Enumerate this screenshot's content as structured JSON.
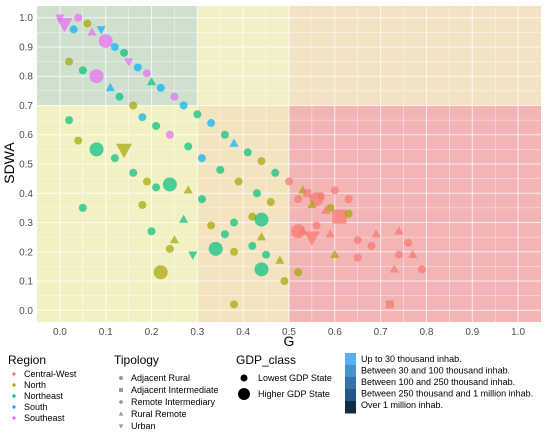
{
  "chart_data": {
    "type": "scatter",
    "xlabel": "G",
    "ylabel": "SDWA",
    "xlim": [
      -0.05,
      1.05
    ],
    "ylim": [
      -0.04,
      1.04
    ],
    "x_ticks": [
      "0.0",
      "0.1",
      "0.2",
      "0.3",
      "0.4",
      "0.5",
      "0.6",
      "0.7",
      "0.8",
      "0.9",
      "1.0"
    ],
    "y_ticks": [
      "0.0",
      "0.1",
      "0.2",
      "0.3",
      "0.4",
      "0.5",
      "0.6",
      "0.7",
      "0.8",
      "0.9",
      "1.0"
    ],
    "grid": true,
    "background_zones": [
      {
        "x": [
          -0.05,
          0.3
        ],
        "y": [
          0.7,
          1.04
        ],
        "color": "#cfe0cf"
      },
      {
        "x": [
          0.3,
          0.5
        ],
        "y": [
          0.7,
          1.04
        ],
        "color": "#f3f0c8"
      },
      {
        "x": [
          0.5,
          1.05
        ],
        "y": [
          0.7,
          1.04
        ],
        "color": "#f1e3c4"
      },
      {
        "x": [
          -0.05,
          0.3
        ],
        "y": [
          -0.04,
          0.7
        ],
        "color": "#f1f1c4"
      },
      {
        "x": [
          0.3,
          0.5
        ],
        "y": [
          -0.04,
          0.7
        ],
        "color": "#f3e4c0"
      },
      {
        "x": [
          0.5,
          1.05
        ],
        "y": [
          -0.04,
          0.7
        ],
        "color": "#f2b4b4"
      }
    ],
    "region_colors": {
      "Central-West": "#f8766d",
      "North": "#a3a500",
      "Northeast": "#00bf7d",
      "South": "#00b0f6",
      "Southeast": "#e76bf3"
    },
    "points": [
      {
        "x": 0.0,
        "y": 1.0,
        "region": "Southeast",
        "tipology": "Urban",
        "gdp": "Lowest GDP State"
      },
      {
        "x": 0.01,
        "y": 0.98,
        "region": "Southeast",
        "tipology": "Urban",
        "gdp": "Higher GDP State"
      },
      {
        "x": 0.03,
        "y": 0.96,
        "region": "South",
        "tipology": "Adjacent Rural",
        "gdp": "Lowest GDP State"
      },
      {
        "x": 0.04,
        "y": 1.0,
        "region": "Southeast",
        "tipology": "Adjacent Rural",
        "gdp": "Lowest GDP State"
      },
      {
        "x": 0.06,
        "y": 0.98,
        "region": "North",
        "tipology": "Adjacent Rural",
        "gdp": "Lowest GDP State"
      },
      {
        "x": 0.07,
        "y": 0.95,
        "region": "Southeast",
        "tipology": "Rural Remote",
        "gdp": "Lowest GDP State"
      },
      {
        "x": 0.09,
        "y": 0.96,
        "region": "South",
        "tipology": "Urban",
        "gdp": "Lowest GDP State"
      },
      {
        "x": 0.1,
        "y": 0.92,
        "region": "Southeast",
        "tipology": "Adjacent Rural",
        "gdp": "Higher GDP State"
      },
      {
        "x": 0.12,
        "y": 0.9,
        "region": "South",
        "tipology": "Adjacent Rural",
        "gdp": "Lowest GDP State"
      },
      {
        "x": 0.14,
        "y": 0.88,
        "region": "Northeast",
        "tipology": "Adjacent Rural",
        "gdp": "Lowest GDP State"
      },
      {
        "x": 0.15,
        "y": 0.85,
        "region": "Southeast",
        "tipology": "Urban",
        "gdp": "Lowest GDP State"
      },
      {
        "x": 0.17,
        "y": 0.83,
        "region": "South",
        "tipology": "Adjacent Rural",
        "gdp": "Lowest GDP State"
      },
      {
        "x": 0.19,
        "y": 0.81,
        "region": "Southeast",
        "tipology": "Adjacent Rural",
        "gdp": "Lowest GDP State"
      },
      {
        "x": 0.2,
        "y": 0.78,
        "region": "Northeast",
        "tipology": "Rural Remote",
        "gdp": "Lowest GDP State"
      },
      {
        "x": 0.22,
        "y": 0.76,
        "region": "South",
        "tipology": "Adjacent Rural",
        "gdp": "Lowest GDP State"
      },
      {
        "x": 0.25,
        "y": 0.73,
        "region": "Southeast",
        "tipology": "Adjacent Rural",
        "gdp": "Lowest GDP State"
      },
      {
        "x": 0.27,
        "y": 0.7,
        "region": "South",
        "tipology": "Adjacent Rural",
        "gdp": "Lowest GDP State"
      },
      {
        "x": 0.3,
        "y": 0.67,
        "region": "Northeast",
        "tipology": "Adjacent Rural",
        "gdp": "Lowest GDP State"
      },
      {
        "x": 0.33,
        "y": 0.64,
        "region": "South",
        "tipology": "Adjacent Rural",
        "gdp": "Lowest GDP State"
      },
      {
        "x": 0.36,
        "y": 0.6,
        "region": "Northeast",
        "tipology": "Adjacent Rural",
        "gdp": "Lowest GDP State"
      },
      {
        "x": 0.38,
        "y": 0.57,
        "region": "South",
        "tipology": "Rural Remote",
        "gdp": "Lowest GDP State"
      },
      {
        "x": 0.41,
        "y": 0.54,
        "region": "Northeast",
        "tipology": "Adjacent Rural",
        "gdp": "Lowest GDP State"
      },
      {
        "x": 0.44,
        "y": 0.51,
        "region": "North",
        "tipology": "Adjacent Rural",
        "gdp": "Lowest GDP State"
      },
      {
        "x": 0.47,
        "y": 0.47,
        "region": "Northeast",
        "tipology": "Adjacent Rural",
        "gdp": "Lowest GDP State"
      },
      {
        "x": 0.5,
        "y": 0.44,
        "region": "Central-West",
        "tipology": "Adjacent Rural",
        "gdp": "Lowest GDP State"
      },
      {
        "x": 0.53,
        "y": 0.41,
        "region": "North",
        "tipology": "Rural Remote",
        "gdp": "Lowest GDP State"
      },
      {
        "x": 0.56,
        "y": 0.38,
        "region": "Central-West",
        "tipology": "Adjacent Rural",
        "gdp": "Higher GDP State"
      },
      {
        "x": 0.59,
        "y": 0.35,
        "region": "North",
        "tipology": "Adjacent Rural",
        "gdp": "Lowest GDP State"
      },
      {
        "x": 0.61,
        "y": 0.32,
        "region": "Central-West",
        "tipology": "Adjacent Intermediate",
        "gdp": "Higher GDP State"
      },
      {
        "x": 0.02,
        "y": 0.85,
        "region": "North",
        "tipology": "Adjacent Rural",
        "gdp": "Lowest GDP State"
      },
      {
        "x": 0.05,
        "y": 0.82,
        "region": "Northeast",
        "tipology": "Adjacent Rural",
        "gdp": "Lowest GDP State"
      },
      {
        "x": 0.08,
        "y": 0.8,
        "region": "Southeast",
        "tipology": "Adjacent Rural",
        "gdp": "Higher GDP State"
      },
      {
        "x": 0.11,
        "y": 0.76,
        "region": "South",
        "tipology": "Rural Remote",
        "gdp": "Lowest GDP State"
      },
      {
        "x": 0.13,
        "y": 0.73,
        "region": "Northeast",
        "tipology": "Adjacent Rural",
        "gdp": "Lowest GDP State"
      },
      {
        "x": 0.16,
        "y": 0.7,
        "region": "North",
        "tipology": "Adjacent Rural",
        "gdp": "Lowest GDP State"
      },
      {
        "x": 0.18,
        "y": 0.66,
        "region": "South",
        "tipology": "Adjacent Rural",
        "gdp": "Lowest GDP State"
      },
      {
        "x": 0.21,
        "y": 0.63,
        "region": "Northeast",
        "tipology": "Adjacent Rural",
        "gdp": "Lowest GDP State"
      },
      {
        "x": 0.24,
        "y": 0.6,
        "region": "Southeast",
        "tipology": "Adjacent Rural",
        "gdp": "Lowest GDP State"
      },
      {
        "x": 0.28,
        "y": 0.56,
        "region": "Northeast",
        "tipology": "Adjacent Rural",
        "gdp": "Lowest GDP State"
      },
      {
        "x": 0.31,
        "y": 0.52,
        "region": "South",
        "tipology": "Adjacent Rural",
        "gdp": "Lowest GDP State"
      },
      {
        "x": 0.35,
        "y": 0.48,
        "region": "Northeast",
        "tipology": "Adjacent Rural",
        "gdp": "Lowest GDP State"
      },
      {
        "x": 0.39,
        "y": 0.44,
        "region": "North",
        "tipology": "Adjacent Rural",
        "gdp": "Lowest GDP State"
      },
      {
        "x": 0.43,
        "y": 0.4,
        "region": "Northeast",
        "tipology": "Adjacent Rural",
        "gdp": "Lowest GDP State"
      },
      {
        "x": 0.46,
        "y": 0.37,
        "region": "North",
        "tipology": "Adjacent Rural",
        "gdp": "Lowest GDP State"
      },
      {
        "x": 0.02,
        "y": 0.65,
        "region": "Northeast",
        "tipology": "Adjacent Rural",
        "gdp": "Lowest GDP State"
      },
      {
        "x": 0.04,
        "y": 0.58,
        "region": "North",
        "tipology": "Adjacent Rural",
        "gdp": "Lowest GDP State"
      },
      {
        "x": 0.08,
        "y": 0.55,
        "region": "Northeast",
        "tipology": "Adjacent Rural",
        "gdp": "Higher GDP State"
      },
      {
        "x": 0.12,
        "y": 0.52,
        "region": "Northeast",
        "tipology": "Adjacent Rural",
        "gdp": "Lowest GDP State"
      },
      {
        "x": 0.14,
        "y": 0.55,
        "region": "North",
        "tipology": "Urban",
        "gdp": "Higher GDP State"
      },
      {
        "x": 0.16,
        "y": 0.47,
        "region": "Northeast",
        "tipology": "Adjacent Rural",
        "gdp": "Lowest GDP State"
      },
      {
        "x": 0.19,
        "y": 0.44,
        "region": "North",
        "tipology": "Adjacent Rural",
        "gdp": "Lowest GDP State"
      },
      {
        "x": 0.21,
        "y": 0.42,
        "region": "Northeast",
        "tipology": "Adjacent Rural",
        "gdp": "Lowest GDP State"
      },
      {
        "x": 0.24,
        "y": 0.43,
        "region": "Northeast",
        "tipology": "Adjacent Rural",
        "gdp": "Higher GDP State"
      },
      {
        "x": 0.28,
        "y": 0.41,
        "region": "North",
        "tipology": "Rural Remote",
        "gdp": "Lowest GDP State"
      },
      {
        "x": 0.31,
        "y": 0.38,
        "region": "Northeast",
        "tipology": "Adjacent Rural",
        "gdp": "Lowest GDP State"
      },
      {
        "x": 0.05,
        "y": 0.35,
        "region": "Northeast",
        "tipology": "Adjacent Rural",
        "gdp": "Lowest GDP State"
      },
      {
        "x": 0.18,
        "y": 0.36,
        "region": "North",
        "tipology": "Adjacent Rural",
        "gdp": "Lowest GDP State"
      },
      {
        "x": 0.27,
        "y": 0.31,
        "region": "Northeast",
        "tipology": "Rural Remote",
        "gdp": "Lowest GDP State"
      },
      {
        "x": 0.33,
        "y": 0.29,
        "region": "North",
        "tipology": "Adjacent Rural",
        "gdp": "Lowest GDP State"
      },
      {
        "x": 0.36,
        "y": 0.26,
        "region": "Northeast",
        "tipology": "Adjacent Rural",
        "gdp": "Lowest GDP State"
      },
      {
        "x": 0.38,
        "y": 0.3,
        "region": "Northeast",
        "tipology": "Adjacent Rural",
        "gdp": "Lowest GDP State"
      },
      {
        "x": 0.42,
        "y": 0.32,
        "region": "North",
        "tipology": "Adjacent Rural",
        "gdp": "Lowest GDP State"
      },
      {
        "x": 0.44,
        "y": 0.31,
        "region": "Northeast",
        "tipology": "Adjacent Rural",
        "gdp": "Higher GDP State"
      },
      {
        "x": 0.2,
        "y": 0.27,
        "region": "Northeast",
        "tipology": "Adjacent Rural",
        "gdp": "Lowest GDP State"
      },
      {
        "x": 0.25,
        "y": 0.24,
        "region": "North",
        "tipology": "Rural Remote",
        "gdp": "Lowest GDP State"
      },
      {
        "x": 0.24,
        "y": 0.21,
        "region": "North",
        "tipology": "Adjacent Rural",
        "gdp": "Lowest GDP State"
      },
      {
        "x": 0.34,
        "y": 0.21,
        "region": "Northeast",
        "tipology": "Adjacent Rural",
        "gdp": "Higher GDP State"
      },
      {
        "x": 0.38,
        "y": 0.2,
        "region": "North",
        "tipology": "Adjacent Rural",
        "gdp": "Lowest GDP State"
      },
      {
        "x": 0.42,
        "y": 0.22,
        "region": "Northeast",
        "tipology": "Adjacent Rural",
        "gdp": "Lowest GDP State"
      },
      {
        "x": 0.44,
        "y": 0.25,
        "region": "North",
        "tipology": "Rural Remote",
        "gdp": "Lowest GDP State"
      },
      {
        "x": 0.45,
        "y": 0.19,
        "region": "Northeast",
        "tipology": "Adjacent Rural",
        "gdp": "Lowest GDP State"
      },
      {
        "x": 0.29,
        "y": 0.19,
        "region": "Northeast",
        "tipology": "Urban",
        "gdp": "Lowest GDP State"
      },
      {
        "x": 0.22,
        "y": 0.13,
        "region": "North",
        "tipology": "Adjacent Rural",
        "gdp": "Higher GDP State"
      },
      {
        "x": 0.44,
        "y": 0.14,
        "region": "Northeast",
        "tipology": "Adjacent Rural",
        "gdp": "Higher GDP State"
      },
      {
        "x": 0.49,
        "y": 0.1,
        "region": "North",
        "tipology": "Adjacent Rural",
        "gdp": "Lowest GDP State"
      },
      {
        "x": 0.38,
        "y": 0.02,
        "region": "North",
        "tipology": "Adjacent Rural",
        "gdp": "Lowest GDP State"
      },
      {
        "x": 0.52,
        "y": 0.13,
        "region": "North",
        "tipology": "Adjacent Rural",
        "gdp": "Lowest GDP State"
      },
      {
        "x": 0.48,
        "y": 0.17,
        "region": "North",
        "tipology": "Rural Remote",
        "gdp": "Lowest GDP State"
      },
      {
        "x": 0.52,
        "y": 0.38,
        "region": "Central-West",
        "tipology": "Adjacent Rural",
        "gdp": "Lowest GDP State"
      },
      {
        "x": 0.54,
        "y": 0.4,
        "region": "Central-West",
        "tipology": "Adjacent Intermediate",
        "gdp": "Lowest GDP State"
      },
      {
        "x": 0.55,
        "y": 0.36,
        "region": "North",
        "tipology": "Rural Remote",
        "gdp": "Lowest GDP State"
      },
      {
        "x": 0.57,
        "y": 0.39,
        "region": "Central-West",
        "tipology": "Adjacent Rural",
        "gdp": "Lowest GDP State"
      },
      {
        "x": 0.58,
        "y": 0.34,
        "region": "Central-West",
        "tipology": "Rural Remote",
        "gdp": "Lowest GDP State"
      },
      {
        "x": 0.6,
        "y": 0.41,
        "region": "Central-West",
        "tipology": "Adjacent Rural",
        "gdp": "Lowest GDP State"
      },
      {
        "x": 0.63,
        "y": 0.33,
        "region": "North",
        "tipology": "Adjacent Rural",
        "gdp": "Lowest GDP State"
      },
      {
        "x": 0.63,
        "y": 0.38,
        "region": "Central-West",
        "tipology": "Adjacent Rural",
        "gdp": "Lowest GDP State"
      },
      {
        "x": 0.53,
        "y": 0.27,
        "region": "Central-West",
        "tipology": "Rural Remote",
        "gdp": "Lowest GDP State"
      },
      {
        "x": 0.52,
        "y": 0.27,
        "region": "Central-West",
        "tipology": "Adjacent Rural",
        "gdp": "Higher GDP State"
      },
      {
        "x": 0.55,
        "y": 0.25,
        "region": "Central-West",
        "tipology": "Urban",
        "gdp": "Higher GDP State"
      },
      {
        "x": 0.56,
        "y": 0.29,
        "region": "Central-West",
        "tipology": "Adjacent Rural",
        "gdp": "Lowest GDP State"
      },
      {
        "x": 0.59,
        "y": 0.26,
        "region": "Central-West",
        "tipology": "Rural Remote",
        "gdp": "Lowest GDP State"
      },
      {
        "x": 0.65,
        "y": 0.24,
        "region": "Central-West",
        "tipology": "Adjacent Rural",
        "gdp": "Lowest GDP State"
      },
      {
        "x": 0.68,
        "y": 0.22,
        "region": "Central-West",
        "tipology": "Adjacent Rural",
        "gdp": "Lowest GDP State"
      },
      {
        "x": 0.69,
        "y": 0.26,
        "region": "Central-West",
        "tipology": "Rural Remote",
        "gdp": "Lowest GDP State"
      },
      {
        "x": 0.6,
        "y": 0.19,
        "region": "North",
        "tipology": "Rural Remote",
        "gdp": "Lowest GDP State"
      },
      {
        "x": 0.65,
        "y": 0.18,
        "region": "Central-West",
        "tipology": "Adjacent Rural",
        "gdp": "Lowest GDP State"
      },
      {
        "x": 0.72,
        "y": 0.02,
        "region": "Central-West",
        "tipology": "Adjacent Intermediate",
        "gdp": "Lowest GDP State"
      },
      {
        "x": 0.74,
        "y": 0.27,
        "region": "Central-West",
        "tipology": "Rural Remote",
        "gdp": "Lowest GDP State"
      },
      {
        "x": 0.76,
        "y": 0.23,
        "region": "Central-West",
        "tipology": "Adjacent Rural",
        "gdp": "Lowest GDP State"
      },
      {
        "x": 0.74,
        "y": 0.19,
        "region": "Central-West",
        "tipology": "Adjacent Rural",
        "gdp": "Lowest GDP State"
      },
      {
        "x": 0.77,
        "y": 0.19,
        "region": "Central-West",
        "tipology": "Rural Remote",
        "gdp": "Lowest GDP State"
      },
      {
        "x": 0.73,
        "y": 0.14,
        "region": "Central-West",
        "tipology": "Rural Remote",
        "gdp": "Lowest GDP State"
      },
      {
        "x": 0.79,
        "y": 0.14,
        "region": "Central-West",
        "tipology": "Adjacent Rural",
        "gdp": "Lowest GDP State"
      }
    ]
  },
  "legend": {
    "region": {
      "title": "Region",
      "items": [
        {
          "label": "Central-West",
          "color": "#f8766d"
        },
        {
          "label": "North",
          "color": "#a3a500"
        },
        {
          "label": "Northeast",
          "color": "#00bf7d"
        },
        {
          "label": "South",
          "color": "#00b0f6"
        },
        {
          "label": "Southeast",
          "color": "#e76bf3"
        }
      ]
    },
    "tipology": {
      "title": "Tipology",
      "items": [
        {
          "label": "Adjacent Rural",
          "shape": "circle"
        },
        {
          "label": "Adjacent Intermediate",
          "shape": "square"
        },
        {
          "label": "Remote Intermediary",
          "shape": "diamond"
        },
        {
          "label": "Rural Remote",
          "shape": "triangle"
        },
        {
          "label": "Urban",
          "shape": "triangle-down"
        }
      ]
    },
    "gdp_class": {
      "title": "GDP_class",
      "items": [
        {
          "label": "Lowest GDP State",
          "size": "small"
        },
        {
          "label": "Higher GDP State",
          "size": "large"
        }
      ]
    },
    "population": {
      "items": [
        {
          "label": "Up to 30 thousand inhab.",
          "color": "#56b1f7"
        },
        {
          "label": "Between 30 and 100 thousand inhab.",
          "color": "#4592d0"
        },
        {
          "label": "Between 100 and 250 thousand inhab.",
          "color": "#3574aa"
        },
        {
          "label": "Between 250 thousand and 1 million inhab.",
          "color": "#245786"
        },
        {
          "label": "Over 1 million inhab.",
          "color": "#132b43"
        }
      ]
    }
  }
}
